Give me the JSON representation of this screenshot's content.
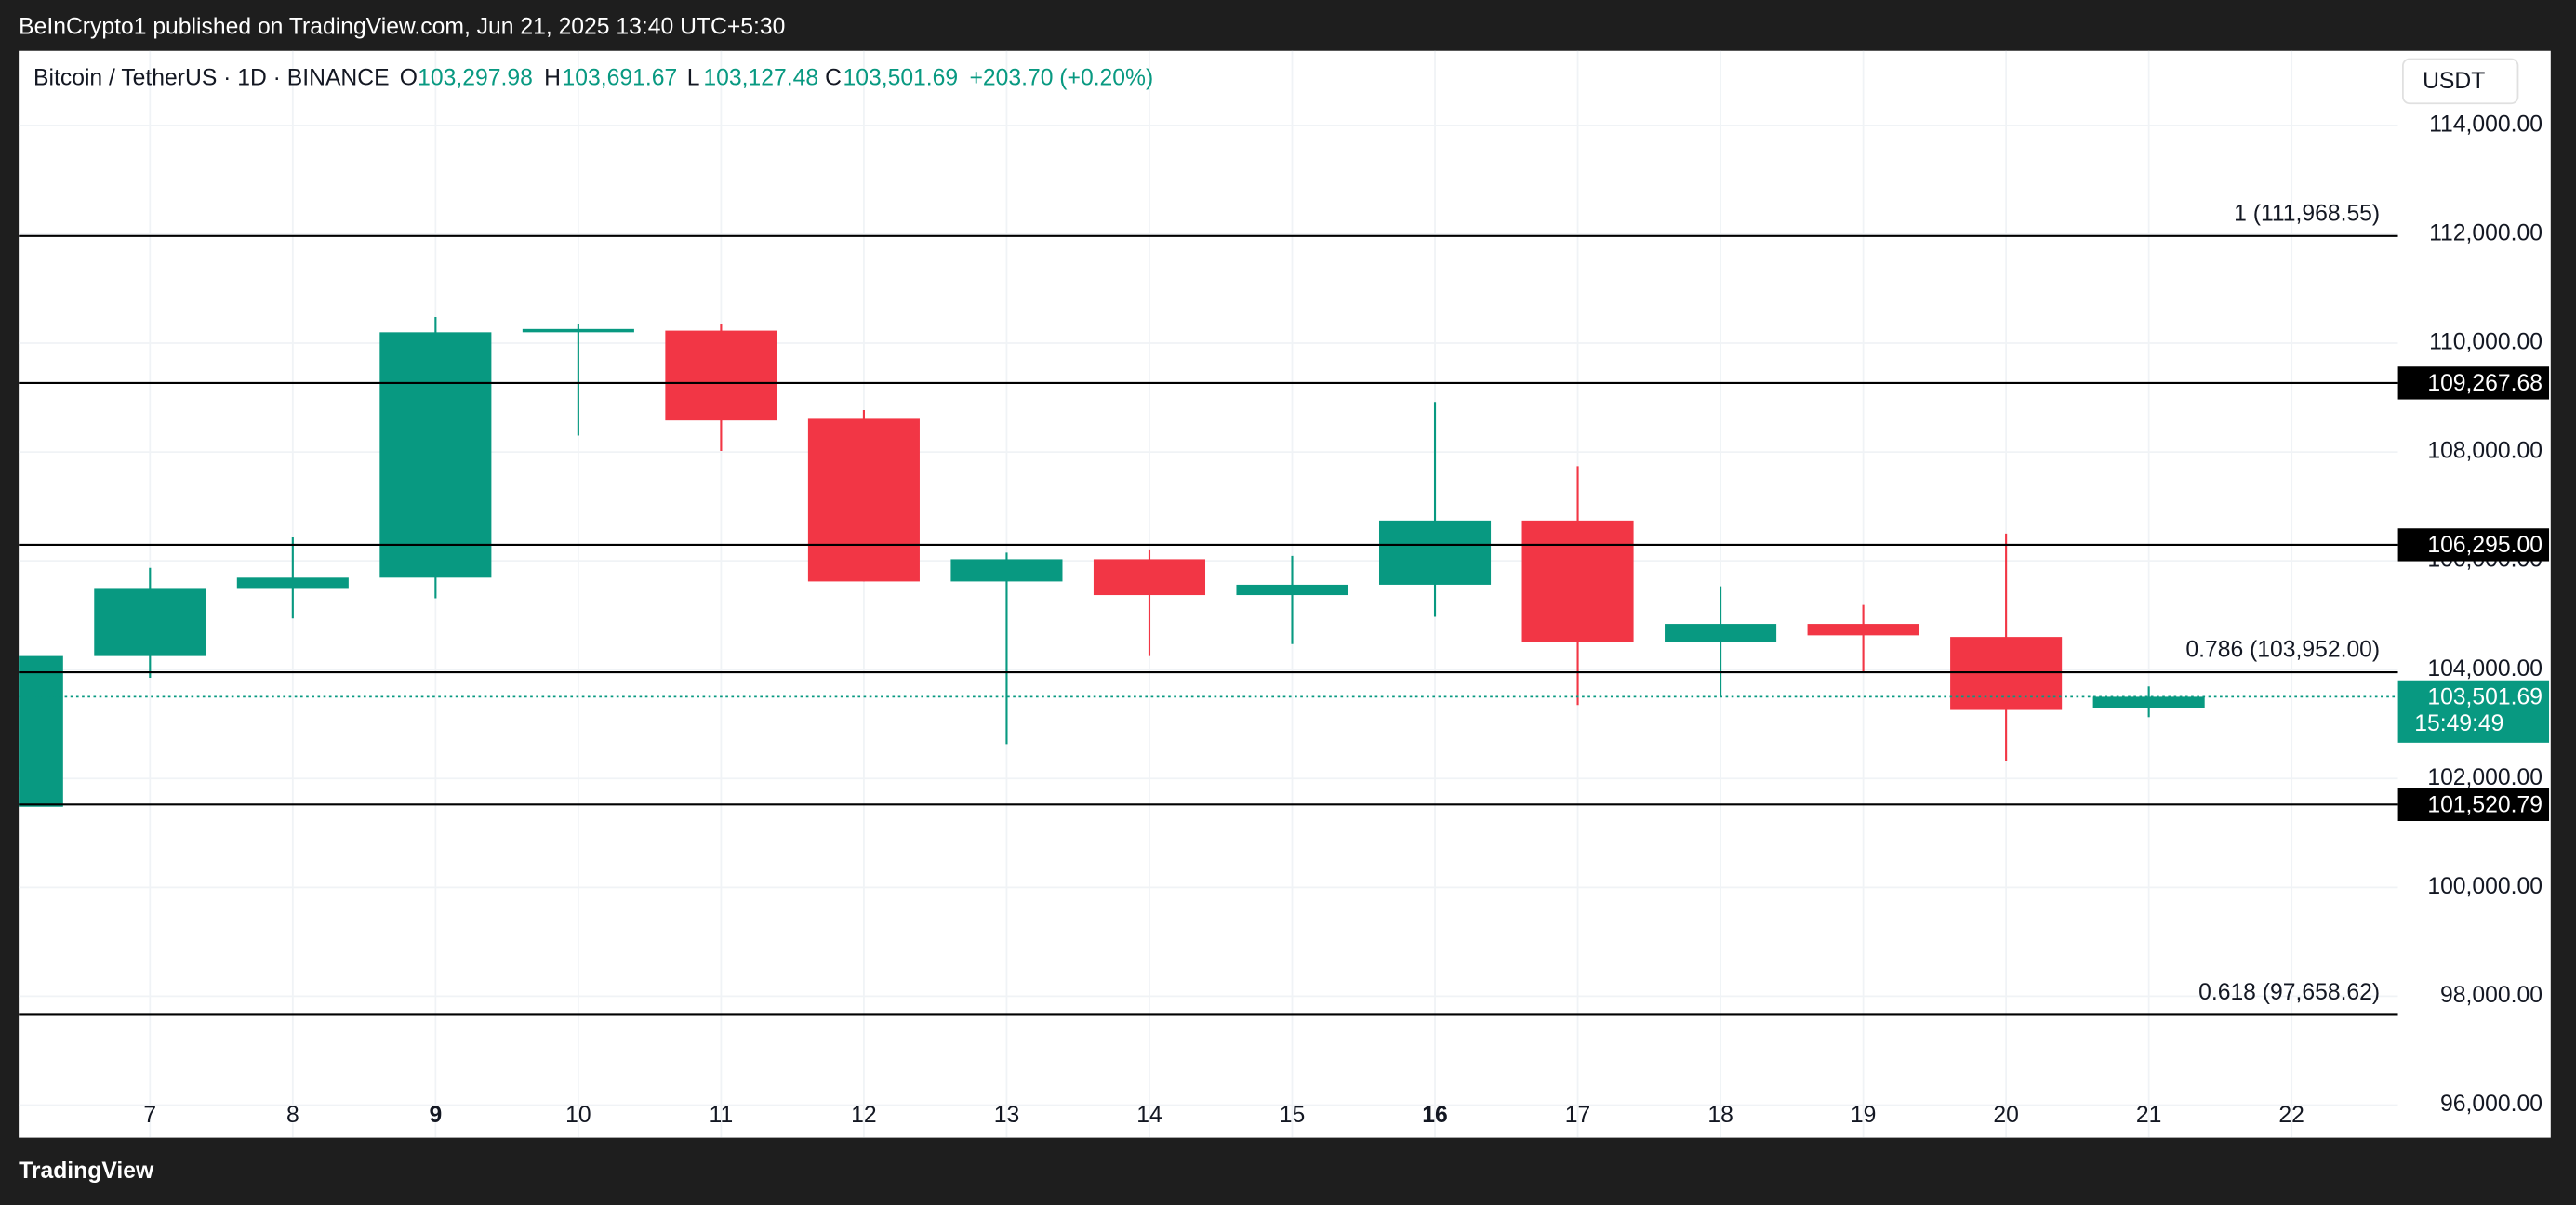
{
  "header": {
    "published": "BeInCrypto1 published on TradingView.com, Jun 21, 2025 13:40 UTC+5:30",
    "symbol": "Bitcoin / TetherUS · 1D · BINANCE",
    "o_label": "O",
    "o": "103,297.98",
    "h_label": "H",
    "h": "103,691.67",
    "l_label": "L",
    "l": "103,127.48",
    "c_label": "C",
    "c": "103,501.69",
    "change": "+203.70 (+0.20%)",
    "currency": "USDT"
  },
  "footer": {
    "brand": "TradingView"
  },
  "chart_data": {
    "type": "candlestick",
    "categories": [
      null,
      "7",
      "8",
      "9",
      "10",
      "11",
      "12",
      "13",
      "14",
      "15",
      "16",
      "17",
      "18",
      "19",
      "20",
      "21",
      "22"
    ],
    "bold_category_indices": [
      3,
      10
    ],
    "open": [
      101480,
      104250,
      105500,
      105690,
      110200,
      110230,
      108610,
      105620,
      106030,
      105370,
      105560,
      106740,
      104500,
      104840,
      104600,
      103297.98,
      null
    ],
    "high": [
      104250,
      105870,
      106430,
      110480,
      110360,
      110360,
      108770,
      106150,
      106210,
      106090,
      108920,
      107740,
      105530,
      105190,
      106500,
      103691.67,
      null
    ],
    "low": [
      101480,
      103850,
      104940,
      105310,
      108300,
      108020,
      105620,
      102630,
      104250,
      104470,
      104970,
      103350,
      103500,
      103940,
      102320,
      103127.48,
      null
    ],
    "close": [
      104250,
      105500,
      105690,
      110200,
      110260,
      108580,
      105620,
      106030,
      105370,
      105560,
      106740,
      104500,
      104840,
      104630,
      103260,
      103501.69,
      null
    ],
    "up_color": "#089981",
    "down_color": "#f23645",
    "ylim": [
      95400,
      115370
    ],
    "yticks": [
      {
        "value": 96000,
        "label": "96,000.00"
      },
      {
        "value": 98000,
        "label": "98,000.00"
      },
      {
        "value": 100000,
        "label": "100,000.00"
      },
      {
        "value": 102000,
        "label": "102,000.00"
      },
      {
        "value": 104000,
        "label": "104,000.00"
      },
      {
        "value": 106000,
        "label": "106,000.00"
      },
      {
        "value": 108000,
        "label": "108,000.00"
      },
      {
        "value": 110000,
        "label": "110,000.00"
      },
      {
        "value": 112000,
        "label": "112,000.00"
      },
      {
        "value": 114000,
        "label": "114,000.00"
      }
    ],
    "grid": true,
    "levels": [
      {
        "value": 111968.55,
        "label": "1 (111,968.55)"
      },
      {
        "value": 103952,
        "label": "0.786 (103,952.00)"
      },
      {
        "value": 97658.62,
        "label": "0.618 (97,658.62)"
      }
    ],
    "axis_levels": [
      {
        "value": 109267.68,
        "label": "109,267.68"
      },
      {
        "value": 106295,
        "label": "106,295.00"
      },
      {
        "value": 101520.79,
        "label": "101,520.79"
      }
    ],
    "last_price": {
      "value": 103501.69,
      "label": "103,501.69",
      "countdown": "15:49:49"
    }
  }
}
